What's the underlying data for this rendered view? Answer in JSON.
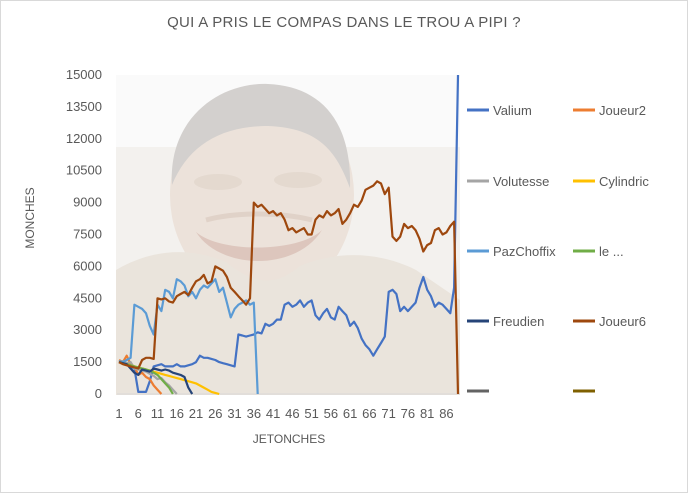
{
  "chart_data": {
    "type": "line",
    "title": "QUI A PRIS LE COMPAS DANS LE TROU A PIPI ?",
    "xlabel": "JETONCHES",
    "ylabel": "MONCHES",
    "ylim": [
      0,
      15000
    ],
    "yticks": [
      0,
      1500,
      3000,
      4500,
      6000,
      7500,
      9000,
      10500,
      12000,
      13500,
      15000
    ],
    "ytick_labels": [
      "0",
      "1500",
      "3000",
      "4500",
      "6000",
      "7500",
      "9000",
      "10500",
      "12000",
      "13500",
      "15000"
    ],
    "xlim": [
      1,
      89
    ],
    "xticks": [
      1,
      6,
      11,
      16,
      21,
      26,
      31,
      36,
      41,
      46,
      51,
      56,
      61,
      66,
      71,
      76,
      81,
      86
    ],
    "xtick_labels": [
      "1",
      "6",
      "11",
      "16",
      "21",
      "26",
      "31",
      "36",
      "41",
      "46",
      "51",
      "56",
      "61",
      "66",
      "71",
      "76",
      "81",
      "86"
    ],
    "grid": false,
    "legend_position": "right",
    "legend_layout": [
      [
        "Valium",
        "Joueur2"
      ],
      [
        "Volutesse",
        "Cylindric"
      ],
      [
        "PazChoffix",
        "le ..."
      ],
      [
        "Freudien",
        "Joueur6"
      ],
      [
        "",
        ""
      ]
    ],
    "series": [
      {
        "name": "Valium",
        "color": "#4472c4",
        "x": [
          1,
          2,
          3,
          4,
          5,
          6,
          7,
          8,
          9,
          10,
          11,
          12,
          13,
          14,
          15,
          16,
          17,
          18,
          19,
          20,
          21,
          22,
          23,
          24,
          25,
          26,
          27,
          28,
          29,
          30,
          31,
          32,
          33,
          34,
          35,
          36,
          37,
          38,
          39,
          40,
          41,
          42,
          43,
          44,
          45,
          46,
          47,
          48,
          49,
          50,
          51,
          52,
          53,
          54,
          55,
          56,
          57,
          58,
          59,
          60,
          61,
          62,
          63,
          64,
          65,
          66,
          67,
          68,
          69,
          70,
          71,
          72,
          73,
          74,
          75,
          76,
          77,
          78,
          79,
          80,
          81,
          82,
          83,
          84,
          85,
          86,
          87,
          88,
          89
        ],
        "y": [
          1500,
          1500,
          1400,
          1300,
          1200,
          100,
          100,
          100,
          600,
          1300,
          1350,
          1400,
          1300,
          1300,
          1300,
          1400,
          1300,
          1300,
          1350,
          1400,
          1500,
          1800,
          1700,
          1700,
          1650,
          1600,
          1500,
          1450,
          1400,
          1350,
          1300,
          2800,
          2750,
          2700,
          2750,
          2800,
          2900,
          2850,
          3300,
          3200,
          3300,
          3500,
          3500,
          4200,
          4300,
          4100,
          4200,
          4400,
          4100,
          4300,
          4400,
          3700,
          3500,
          3800,
          4000,
          3600,
          3500,
          4100,
          3900,
          3700,
          3200,
          3400,
          3100,
          2600,
          2300,
          2100,
          1800,
          2100,
          2400,
          2700,
          4800,
          4900,
          4700,
          3900,
          4100,
          3900,
          4100,
          4300,
          5000,
          5500,
          4900,
          4600,
          4100,
          4300,
          4200,
          4000,
          3800,
          5000,
          15000
        ]
      },
      {
        "name": "Joueur2",
        "color": "#ed7d31",
        "x": [
          1,
          2,
          3,
          4,
          5,
          6,
          7,
          8,
          9,
          10,
          11,
          12
        ],
        "y": [
          1600,
          1500,
          1800,
          1400,
          1300,
          900,
          1000,
          800,
          700,
          400,
          200,
          0
        ]
      },
      {
        "name": "Volutesse",
        "color": "#a5a5a5",
        "x": [
          1,
          2,
          3,
          4,
          5,
          6,
          7,
          8,
          9,
          10,
          11,
          12,
          13,
          14,
          15,
          16
        ],
        "y": [
          1500,
          1550,
          1450,
          1500,
          1200,
          1150,
          1100,
          1050,
          950,
          850,
          700,
          750,
          550,
          400,
          200,
          0
        ]
      },
      {
        "name": "Cylindric",
        "color": "#ffc000",
        "x": [
          1,
          2,
          3,
          4,
          5,
          6,
          7,
          8,
          9,
          10,
          11,
          12,
          13,
          14,
          15,
          16,
          17,
          18,
          19,
          20,
          21,
          22,
          23,
          24,
          25,
          26,
          27
        ],
        "y": [
          1500,
          1450,
          1400,
          1350,
          1300,
          1250,
          1200,
          1150,
          1100,
          1050,
          1000,
          950,
          900,
          850,
          800,
          750,
          700,
          650,
          600,
          550,
          500,
          400,
          300,
          200,
          100,
          50,
          0
        ]
      },
      {
        "name": "PazChoffix",
        "color": "#5b9bd5",
        "x": [
          1,
          2,
          3,
          4,
          5,
          6,
          7,
          8,
          9,
          10,
          11,
          12,
          13,
          14,
          15,
          16,
          17,
          18,
          19,
          20,
          21,
          22,
          23,
          24,
          25,
          26,
          27,
          28,
          29,
          30,
          31,
          32,
          33,
          34,
          35,
          36,
          37
        ],
        "y": [
          1550,
          1500,
          1600,
          1700,
          4200,
          4100,
          4000,
          3800,
          3200,
          2800,
          4200,
          3900,
          4900,
          4800,
          4500,
          5400,
          5300,
          5100,
          4600,
          4800,
          4500,
          4900,
          5100,
          5000,
          5200,
          5400,
          4800,
          5000,
          4300,
          3600,
          4000,
          4200,
          4300,
          4400,
          4200,
          4300,
          0
        ]
      },
      {
        "name": "le ...",
        "color": "#70ad47",
        "x": [
          1,
          2,
          3,
          4,
          5,
          6,
          7,
          8,
          9,
          10,
          11,
          12,
          13,
          14,
          15
        ],
        "y": [
          1500,
          1450,
          1400,
          1350,
          1300,
          1250,
          1200,
          1150,
          1100,
          1000,
          900,
          700,
          500,
          300,
          0
        ]
      },
      {
        "name": "Freudien",
        "color": "#264478",
        "x": [
          1,
          2,
          3,
          4,
          5,
          6,
          7,
          8,
          9,
          10,
          11,
          12,
          13,
          14,
          15,
          16,
          17,
          18,
          19,
          20
        ],
        "y": [
          1500,
          1450,
          1400,
          1200,
          1000,
          900,
          1150,
          1100,
          1050,
          1200,
          1150,
          1100,
          1150,
          1100,
          1000,
          950,
          900,
          800,
          300,
          0
        ]
      },
      {
        "name": "Joueur6",
        "color": "#9e480e",
        "x": [
          1,
          2,
          3,
          4,
          5,
          6,
          7,
          8,
          9,
          10,
          11,
          12,
          13,
          14,
          15,
          16,
          17,
          18,
          19,
          20,
          21,
          22,
          23,
          24,
          25,
          26,
          27,
          28,
          29,
          30,
          31,
          32,
          33,
          34,
          35,
          36,
          37,
          38,
          39,
          40,
          41,
          42,
          43,
          44,
          45,
          46,
          47,
          48,
          49,
          50,
          51,
          52,
          53,
          54,
          55,
          56,
          57,
          58,
          59,
          60,
          61,
          62,
          63,
          64,
          65,
          66,
          67,
          68,
          69,
          70,
          71,
          72,
          73,
          74,
          75,
          76,
          77,
          78,
          79,
          80,
          81,
          82,
          83,
          84,
          85,
          86,
          87,
          88,
          89
        ],
        "y": [
          1500,
          1400,
          1350,
          1300,
          1250,
          1200,
          1600,
          1700,
          1700,
          1650,
          4500,
          4450,
          4500,
          4350,
          4300,
          4600,
          4700,
          4800,
          4650,
          5000,
          5300,
          5400,
          5600,
          5200,
          5300,
          6000,
          5900,
          5800,
          5500,
          5000,
          4800,
          4600,
          4400,
          4200,
          4500,
          9000,
          8800,
          8900,
          8700,
          8500,
          8600,
          8400,
          8500,
          8200,
          7700,
          7800,
          7600,
          7700,
          7800,
          7500,
          7500,
          8200,
          8400,
          8300,
          8600,
          8400,
          8500,
          8700,
          8000,
          8200,
          8500,
          8900,
          8800,
          9100,
          9600,
          9700,
          9800,
          10000,
          9900,
          9400,
          9700,
          7400,
          7200,
          7400,
          8000,
          7800,
          7900,
          7700,
          7300,
          6700,
          7000,
          7100,
          7700,
          7800,
          7500,
          7600,
          7900,
          8100,
          0
        ]
      },
      {
        "name": "",
        "color": "#7f6000",
        "x": [],
        "y": []
      },
      {
        "name": "",
        "color": "#636363",
        "x": [],
        "y": []
      }
    ]
  }
}
